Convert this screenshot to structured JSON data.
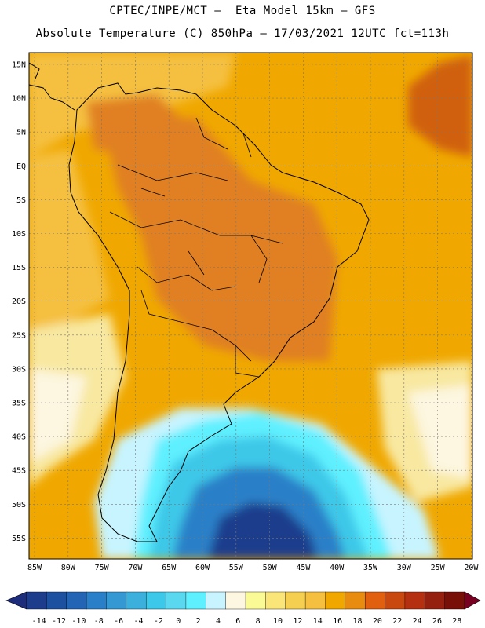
{
  "header": {
    "line1": "CPTEC/INPE/MCT –  Eta Model 15km – GFS",
    "line2": "Absolute Temperature (C) 850hPa – 17/03/2021 12UTC fct=113h"
  },
  "map": {
    "lat_labels": [
      "15N",
      "10N",
      "5N",
      "EQ",
      "5S",
      "10S",
      "15S",
      "20S",
      "25S",
      "30S",
      "35S",
      "40S",
      "45S",
      "50S",
      "55S"
    ],
    "lon_labels": [
      "85W",
      "80W",
      "75W",
      "70W",
      "65W",
      "60W",
      "55W",
      "50W",
      "45W",
      "40W",
      "35W",
      "30W",
      "25W",
      "20W"
    ],
    "grid": true,
    "colors": {
      "warm_main": "#f0a800",
      "warm_light": "#f5c040",
      "warm_hot": "#e08020",
      "hot_spot": "#d06010",
      "mild": "#f8e8a0",
      "pale": "#fdf6e0",
      "cyan": "#5ef0ff",
      "light_blue": "#c8f4ff",
      "mid_blue": "#3cc8e8",
      "deep_blue": "#2a80c8",
      "navy": "#1e3c8c"
    }
  },
  "colorbar": {
    "tick_labels": [
      "-14",
      "-12",
      "-10",
      "-8",
      "-6",
      "-4",
      "-2",
      "0",
      "2",
      "4",
      "6",
      "8",
      "10",
      "12",
      "14",
      "16",
      "18",
      "20",
      "22",
      "24",
      "26",
      "28"
    ],
    "colors": [
      "#1e3c8c",
      "#1e50a0",
      "#2464b4",
      "#2a80c8",
      "#3498d2",
      "#3cb0dc",
      "#3cc8e8",
      "#5ad8f0",
      "#5ef0ff",
      "#c8f4ff",
      "#fdf6e0",
      "#fafa96",
      "#fae678",
      "#f5d050",
      "#f5c040",
      "#f0a800",
      "#e88c10",
      "#e06010",
      "#c84810",
      "#b43010",
      "#962010",
      "#781008"
    ],
    "left_color": "#1e2c7c",
    "right_color": "#780020"
  }
}
